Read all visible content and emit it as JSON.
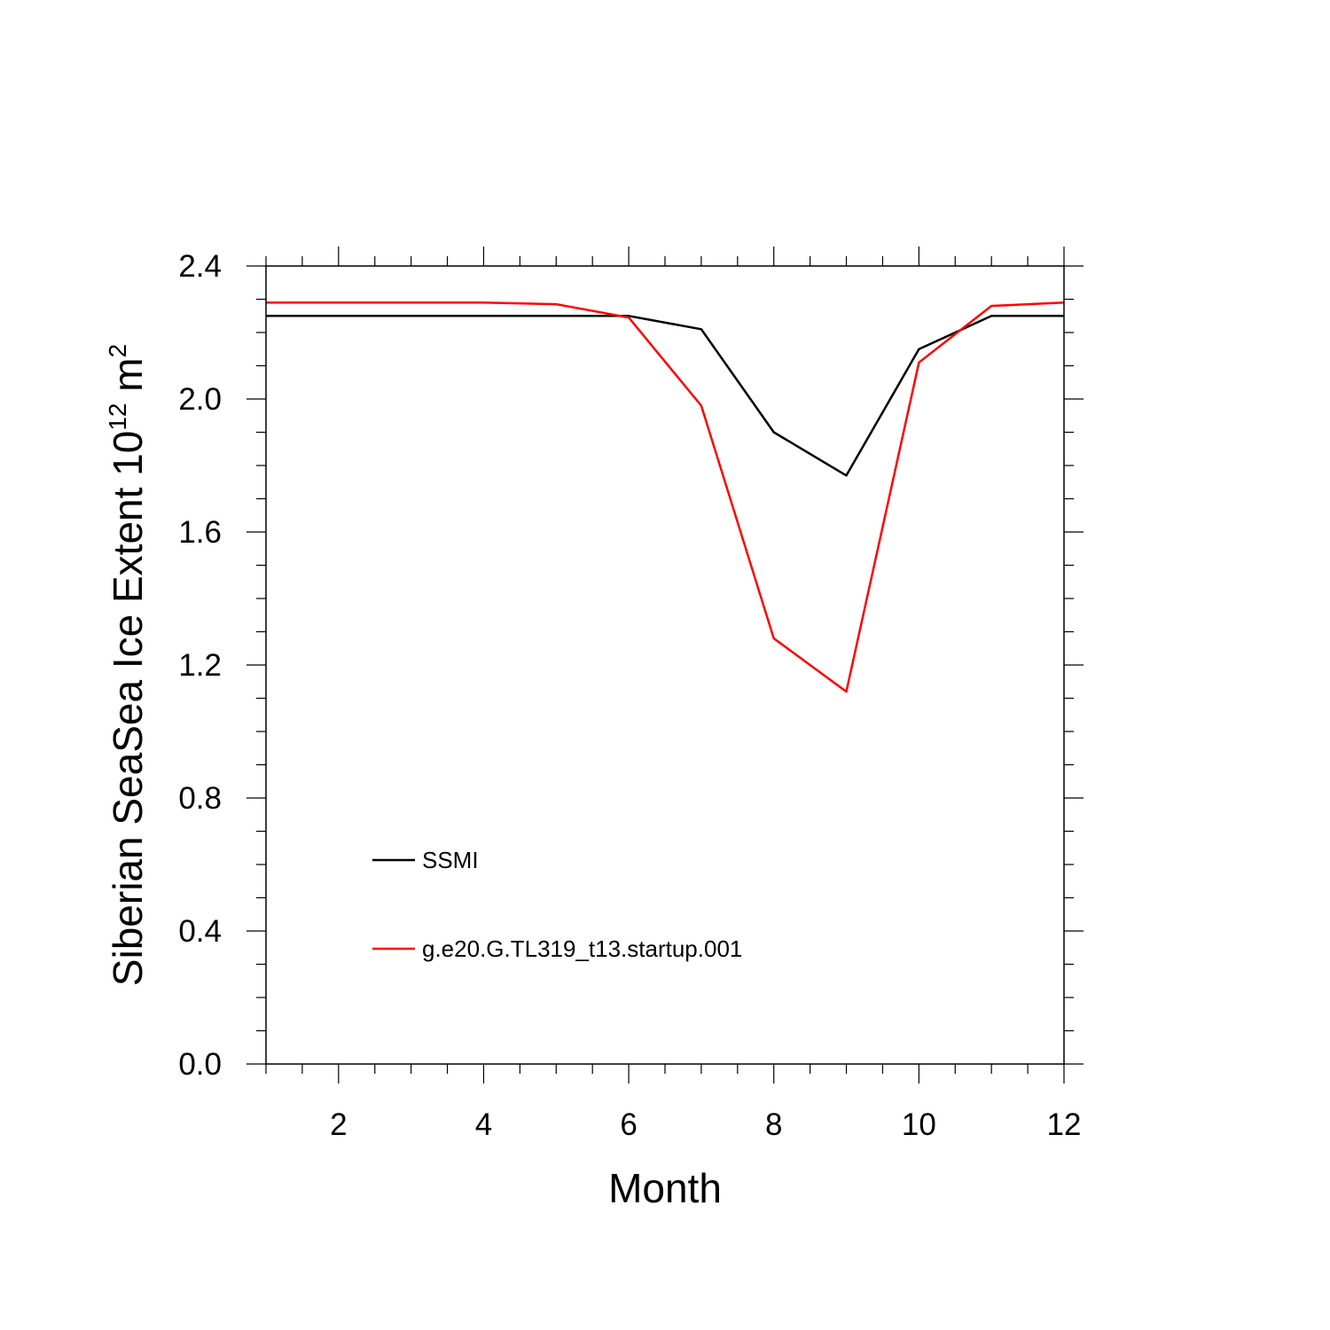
{
  "chart_data": {
    "type": "line",
    "title": "",
    "xlabel": "Month",
    "ylabel": {
      "main": "Siberian SeaSea Ice Extent 10",
      "superscript": "12",
      "unit": " m",
      "unit_superscript": "2"
    },
    "xlim": [
      1,
      12
    ],
    "ylim": [
      0,
      2.4
    ],
    "x_ticks": [
      2,
      4,
      6,
      8,
      10,
      12
    ],
    "x_tick_labels": [
      "2",
      "4",
      "6",
      "8",
      "10",
      "12"
    ],
    "y_ticks": [
      0,
      0.4,
      0.8,
      1.2,
      1.6,
      2.0,
      2.4
    ],
    "y_tick_labels": [
      "0.0",
      "0.4",
      "0.8",
      "1.2",
      "1.6",
      "2.0",
      "2.4"
    ],
    "x": [
      1,
      2,
      3,
      4,
      5,
      6,
      7,
      8,
      9,
      10,
      11,
      12
    ],
    "series": [
      {
        "name": "SSMI",
        "color": "#000000",
        "values": [
          2.25,
          2.25,
          2.25,
          2.25,
          2.25,
          2.25,
          2.21,
          1.9,
          1.77,
          2.15,
          2.25,
          2.25
        ]
      },
      {
        "name": "g.e20.G.TL319_t13.startup.001",
        "color": "#ff0000",
        "values": [
          2.29,
          2.29,
          2.29,
          2.29,
          2.285,
          2.245,
          1.98,
          1.28,
          1.12,
          2.11,
          2.28,
          2.29
        ]
      }
    ],
    "grid": false,
    "legend_position": "bottom-left inside"
  }
}
